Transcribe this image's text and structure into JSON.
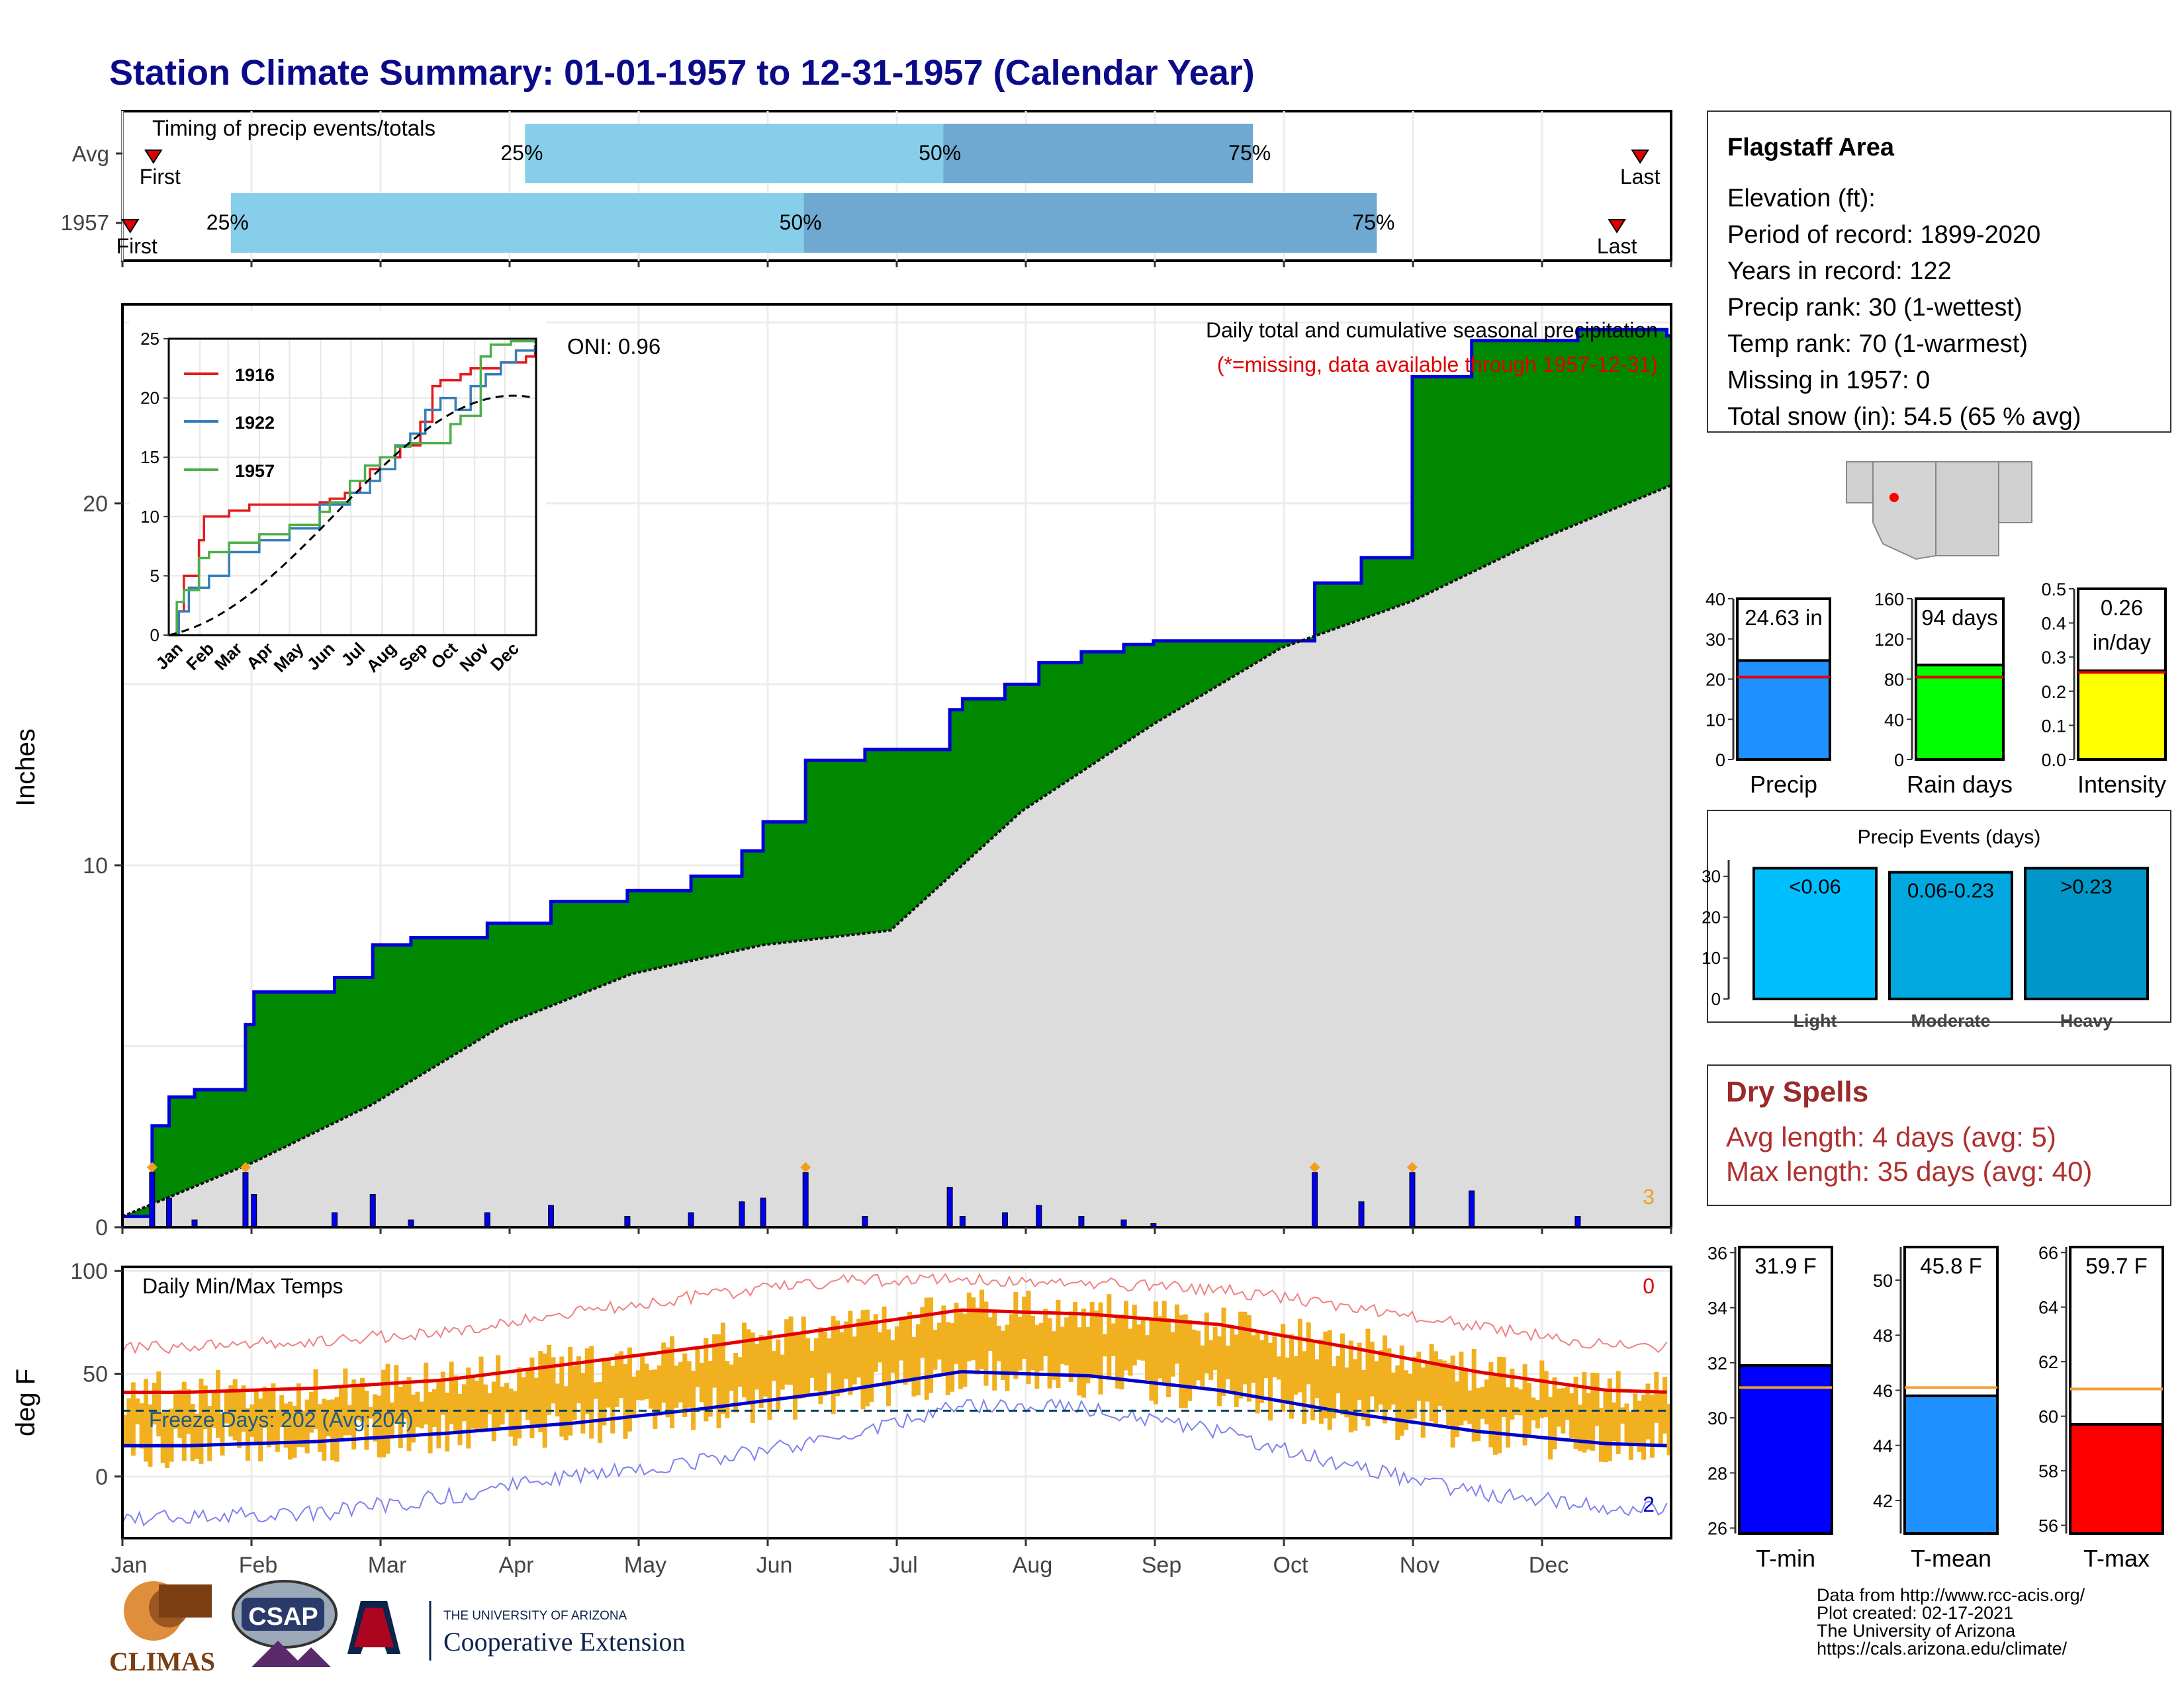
{
  "title": "Station Climate Summary: 01-01-1957 to 12-31-1957 (Calendar Year)",
  "timing": {
    "label": "Timing of precip events/totals",
    "rows": [
      {
        "name": "Avg",
        "first_label": "First",
        "last_label": "Last",
        "first": 0.02,
        "p25": 0.26,
        "p50": 0.53,
        "p75": 0.73,
        "last": 0.98,
        "lab25": "25%",
        "lab50": "50%",
        "lab75": "75%"
      },
      {
        "name": "1957",
        "first_label": "First",
        "last_label": "Last",
        "first": 0.005,
        "p25": 0.07,
        "p50": 0.44,
        "p75": 0.81,
        "last": 0.965,
        "lab25": "25%",
        "lab50": "50%",
        "lab75": "75%"
      }
    ]
  },
  "station": {
    "name": "Flagstaff Area",
    "lines": [
      "Elevation (ft):",
      "Period of record: 1899-2020",
      "Years in record: 122",
      "Precip rank: 30 (1-wettest)",
      "Temp rank: 70 (1-warmest)",
      "Missing in 1957: 0",
      "Total snow (in): 54.5 (65 % avg)"
    ]
  },
  "precip_panel": {
    "ylabel": "Inches",
    "oni": "ONI: 0.96",
    "note1": "Daily total and cumulative seasonal precipitation",
    "note2": "(*=missing, data available through 1957-12-31)",
    "count_label": "3",
    "yticks": [
      0,
      10,
      20
    ],
    "ylim": [
      0,
      25.5
    ]
  },
  "temp_panel": {
    "ylabel": "deg F",
    "label": "Daily Min/Max Temps",
    "freeze": "Freeze Days: 202 (Avg:204)",
    "hot_count": "0",
    "cold_count": "2",
    "yticks": [
      0,
      50,
      100
    ],
    "ylim": [
      -30,
      102
    ]
  },
  "months": [
    "Jan",
    "Feb",
    "Mar",
    "Apr",
    "May",
    "Jun",
    "Jul",
    "Aug",
    "Sep",
    "Oct",
    "Nov",
    "Dec"
  ],
  "inset": {
    "legend": [
      "1916",
      "1922",
      "1957"
    ],
    "yticks": [
      0,
      5,
      10,
      15,
      20,
      25
    ],
    "months": [
      "Jan",
      "Feb",
      "Mar",
      "Apr",
      "May",
      "Jun",
      "Jul",
      "Aug",
      "Sep",
      "Oct",
      "Nov",
      "Dec"
    ]
  },
  "bars_precip": {
    "values": [
      "24.63 in",
      "94 days",
      "0.26 in/day"
    ],
    "labels": [
      "Precip",
      "Rain days",
      "Intensity"
    ]
  },
  "events": {
    "title": "Precip Events (days)",
    "cats": [
      "Light",
      "Moderate",
      "Heavy"
    ],
    "values": [
      32,
      31,
      32
    ],
    "labels": [
      "<0.06",
      "0.06-0.23",
      ">0.23"
    ]
  },
  "dry": {
    "title": "Dry Spells",
    "avg": "Avg length: 4 days (avg: 5)",
    "max": "Max length: 35 days (avg: 40)"
  },
  "temps": {
    "values": [
      "31.9 F",
      "45.8 F",
      "59.7 F"
    ],
    "labels": [
      "T-min",
      "T-mean",
      "T-max"
    ]
  },
  "credits": [
    "Data from http://www.rcc-acis.org/",
    "Plot created: 02-17-2021",
    "The University of Arizona",
    "https://cals.arizona.edu/climate/"
  ],
  "logos": {
    "climas": "CLIMAS",
    "csap": "CSAP",
    "ua1": "THE UNIVERSITY OF ARIZONA",
    "ua2": "Cooperative Extension"
  },
  "colors": {
    "green": "#008800",
    "blue": "#0000dd",
    "gray": "#dcdcdc",
    "red": "#ee0000",
    "gold": "#f0b020",
    "light_blue": "#87ceeb",
    "mid_blue": "#6fa8d0"
  },
  "chart_data": [
    {
      "type": "area",
      "title": "Daily total and cumulative seasonal precipitation",
      "ylabel": "Inches",
      "ylim": [
        0,
        25.5
      ],
      "series": [
        {
          "name": "1957",
          "x": [
            "1957-01-01",
            "1957-01-08",
            "1957-01-12",
            "1957-01-18",
            "1957-01-30",
            "1957-02-01",
            "1957-02-20",
            "1957-03-01",
            "1957-03-10",
            "1957-03-28",
            "1957-04-12",
            "1957-04-30",
            "1957-05-15",
            "1957-05-27",
            "1957-06-01",
            "1957-06-11",
            "1957-06-25",
            "1957-07-15",
            "1957-07-18",
            "1957-07-28",
            "1957-08-05",
            "1957-08-15",
            "1957-08-25",
            "1957-09-01",
            "1957-09-30",
            "1957-10-09",
            "1957-10-20",
            "1957-11-01",
            "1957-11-15",
            "1957-11-25",
            "1957-12-10",
            "1957-12-31"
          ],
          "values": [
            0.3,
            2.8,
            3.6,
            3.8,
            5.6,
            6.5,
            6.9,
            7.8,
            8.0,
            8.4,
            9.0,
            9.3,
            9.7,
            10.4,
            11.2,
            12.9,
            13.2,
            14.3,
            14.6,
            15.0,
            15.6,
            15.9,
            16.1,
            16.2,
            16.2,
            17.8,
            18.5,
            23.5,
            24.5,
            24.5,
            24.8,
            24.63
          ]
        },
        {
          "name": "Average",
          "x": [
            "1957-01-01",
            "1957-02-01",
            "1957-03-01",
            "1957-04-01",
            "1957-05-01",
            "1957-06-01",
            "1957-07-01",
            "1957-08-01",
            "1957-09-01",
            "1957-10-01",
            "1957-11-01",
            "1957-12-01",
            "1957-12-31"
          ],
          "values": [
            0.3,
            1.8,
            3.4,
            5.6,
            7.0,
            7.8,
            8.2,
            11.5,
            13.9,
            16.0,
            17.3,
            19.0,
            20.5
          ]
        }
      ]
    },
    {
      "type": "line",
      "title": "Daily Min/Max Temps",
      "ylabel": "deg F",
      "ylim": [
        -30,
        102
      ],
      "x": [
        "Jan",
        "Feb",
        "Mar",
        "Apr",
        "May",
        "Jun",
        "Jul",
        "Aug",
        "Sep",
        "Oct",
        "Nov",
        "Dec",
        "Dec31"
      ],
      "series": [
        {
          "name": "Avg max",
          "values": [
            41,
            43,
            47,
            55,
            63,
            72,
            81,
            79,
            74,
            63,
            51,
            42,
            40
          ]
        },
        {
          "name": "Avg min",
          "values": [
            15,
            17,
            21,
            26,
            33,
            41,
            51,
            49,
            42,
            31,
            22,
            16,
            14
          ]
        },
        {
          "name": "Record max",
          "values": [
            63,
            66,
            70,
            80,
            88,
            95,
            96,
            94,
            91,
            83,
            73,
            64,
            62
          ]
        },
        {
          "name": "Record min",
          "values": [
            -20,
            -18,
            -10,
            0,
            8,
            18,
            35,
            33,
            22,
            5,
            -8,
            -15,
            -18
          ]
        }
      ]
    },
    {
      "type": "bar",
      "title": "Precip Events (days)",
      "categories": [
        "Light",
        "Moderate",
        "Heavy"
      ],
      "values": [
        32,
        31,
        32
      ]
    }
  ]
}
